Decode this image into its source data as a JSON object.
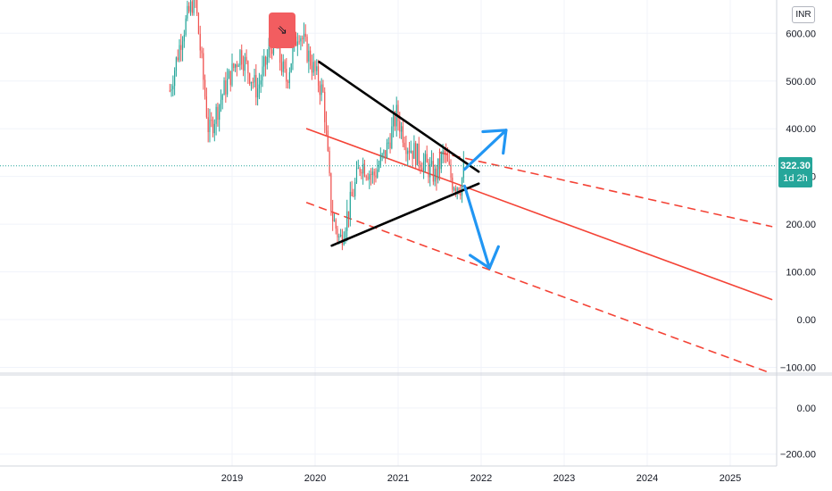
{
  "currency": "INR",
  "last_price": {
    "value": "322.30",
    "countdown": "1d 2h"
  },
  "signal_flag": {
    "icon": "arrow-down-right-icon",
    "glyph": "⇘"
  },
  "colors": {
    "up_candle": "#26a69a",
    "down_candle": "#ef5350",
    "regression_line": "#f44336",
    "triangle": "#000000",
    "projection_arrows": "#2196f3",
    "last_price_line": "#26a69a",
    "signal_flag": "#f25d60"
  },
  "chart_data": [
    {
      "type": "candlestick",
      "y_ticks": [
        "600.00",
        "500.00",
        "400.00",
        "300.00",
        "200.00",
        "100.00",
        "0.00",
        "−100.00"
      ],
      "x_ticks": [
        "2019",
        "2020",
        "2021",
        "2022",
        "2023",
        "2024",
        "2025"
      ],
      "ylim": [
        -100,
        650
      ],
      "xlim": [
        2018.0,
        2025.55
      ],
      "last_price": 322.3,
      "series": [
        {
          "kind": "price",
          "points": [
            [
              2018.25,
              480
            ],
            [
              2018.4,
              600
            ],
            [
              2018.55,
              680
            ],
            [
              2018.72,
              390
            ],
            [
              2018.9,
              480
            ],
            [
              2019.1,
              560
            ],
            [
              2019.3,
              480
            ],
            [
              2019.5,
              590
            ],
            [
              2019.65,
              500
            ],
            [
              2019.8,
              610
            ],
            [
              2019.95,
              540
            ],
            [
              2020.1,
              470
            ],
            [
              2020.2,
              220
            ],
            [
              2020.3,
              165
            ],
            [
              2020.45,
              260
            ],
            [
              2020.55,
              330
            ],
            [
              2020.7,
              300
            ],
            [
              2020.85,
              350
            ],
            [
              2020.98,
              430
            ],
            [
              2021.1,
              370
            ],
            [
              2021.3,
              330
            ],
            [
              2021.45,
              300
            ],
            [
              2021.55,
              350
            ],
            [
              2021.65,
              290
            ],
            [
              2021.75,
              280
            ],
            [
              2021.8,
              322
            ]
          ]
        }
      ],
      "drawings": {
        "triangle_upper": [
          [
            2020.05,
            540
          ],
          [
            2021.97,
            310
          ]
        ],
        "triangle_lower": [
          [
            2020.2,
            155
          ],
          [
            2021.97,
            285
          ]
        ],
        "regression_mid": [
          [
            2019.9,
            400
          ],
          [
            2025.5,
            42
          ]
        ],
        "regression_upper": [
          [
            2021.5,
            350
          ],
          [
            2025.5,
            195
          ]
        ],
        "regression_lower": [
          [
            2019.9,
            245
          ],
          [
            2025.5,
            -113
          ]
        ],
        "arrow_up": [
          [
            2021.8,
            315
          ],
          [
            2022.3,
            397
          ]
        ],
        "arrow_down": [
          [
            2021.8,
            280
          ],
          [
            2022.1,
            108
          ]
        ]
      }
    },
    {
      "type": "line",
      "y_ticks": [
        "0.00",
        "−200.00"
      ],
      "ylim": [
        -230,
        80
      ],
      "series": []
    }
  ]
}
